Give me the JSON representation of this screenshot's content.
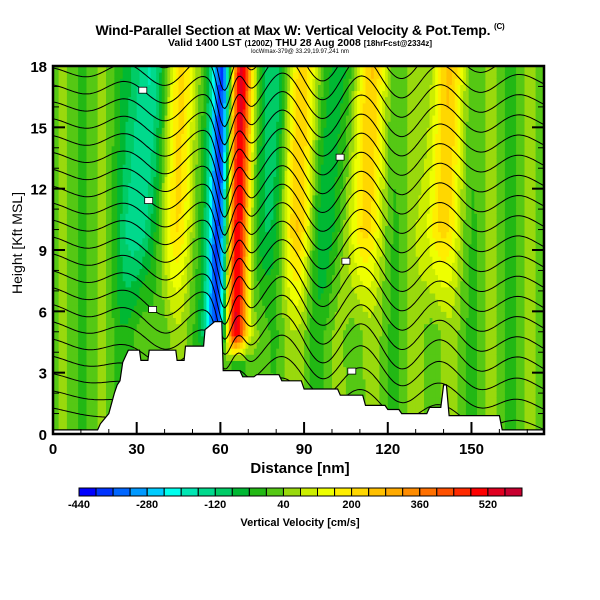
{
  "chart_data": {
    "type": "heatmap",
    "title": "Wind-Parallel Section at Max W: Vertical Velocity & Pot.Temp.",
    "title_suffix": "(C)",
    "subtitle_main": "Valid 1400 LST",
    "subtitle_zulu": "(1200Z)",
    "subtitle_date": "THU 28 Aug 2008",
    "subtitle_fcst": "[18hrFcst@2334z]",
    "subtitle_location": "locWmax-379@ 33.29,19.97,241 nm",
    "xlabel": "Distance [nm]",
    "ylabel": "Height [Kft MSL]",
    "xlim": [
      0,
      176
    ],
    "ylim": [
      0,
      18
    ],
    "xticks": [
      "0",
      "30",
      "60",
      "90",
      "120",
      "150"
    ],
    "xtick_values": [
      0,
      30,
      60,
      90,
      120,
      150
    ],
    "yticks": [
      "0",
      "3",
      "6",
      "9",
      "12",
      "15",
      "18"
    ],
    "ytick_values": [
      0,
      3,
      6,
      9,
      12,
      15,
      18
    ],
    "colorbar": {
      "label": "Vertical Velocity [cm/s]",
      "min": -440,
      "max": 600,
      "step": 40,
      "tick_labels": [
        "-440",
        "-280",
        "-120",
        "40",
        "200",
        "360",
        "520"
      ],
      "tick_values": [
        -440,
        -280,
        -120,
        40,
        200,
        360,
        520
      ],
      "colors": [
        "#0000ff",
        "#0033ff",
        "#0066ff",
        "#0099ff",
        "#00ccff",
        "#00ffee",
        "#00e6b3",
        "#00d98c",
        "#00cc66",
        "#00b833",
        "#22b814",
        "#55c814",
        "#99d90d",
        "#ccee00",
        "#eeff00",
        "#ffee00",
        "#ffd700",
        "#ffc000",
        "#ffaa00",
        "#ff8c00",
        "#ff7000",
        "#ff5000",
        "#ff2a00",
        "#ff0000",
        "#e00020",
        "#c80030"
      ]
    },
    "terrain_profile": {
      "distance_nm": [
        0,
        16,
        17,
        20,
        21,
        22,
        23,
        24,
        25,
        27,
        31,
        31.5,
        34,
        34.5,
        44,
        44.5,
        47,
        47.5,
        54,
        54.5,
        58,
        60.5,
        61,
        61.5,
        67,
        68,
        72,
        73,
        81,
        82,
        89,
        90,
        102,
        103,
        111,
        112,
        119,
        120,
        124,
        125,
        134,
        135,
        139,
        140,
        141,
        142,
        160,
        161,
        176
      ],
      "height_kft": [
        0.2,
        0.2,
        0.5,
        1.0,
        1.5,
        2.0,
        2.4,
        2.6,
        3.5,
        4.1,
        4.1,
        3.6,
        3.6,
        4.1,
        4.1,
        3.6,
        3.6,
        4.3,
        4.3,
        5.1,
        5.5,
        5.5,
        3.1,
        3.1,
        3.1,
        2.8,
        2.8,
        2.9,
        2.9,
        2.6,
        2.6,
        2.2,
        2.2,
        1.9,
        1.9,
        1.4,
        1.4,
        1.2,
        1.2,
        1.0,
        1.0,
        1.3,
        1.3,
        2.4,
        2.4,
        0.9,
        0.9,
        0.2,
        0.2
      ]
    },
    "velocity_features": [
      {
        "name": "strong downdraft",
        "distance_nm": 59,
        "min_cm_s": -440,
        "height_range_kft": [
          5,
          18
        ]
      },
      {
        "name": "strong updraft",
        "distance_nm": 66,
        "max_cm_s": 560,
        "height_range_kft": [
          5,
          18
        ]
      },
      {
        "name": "weak updraft band",
        "distance_nm": 43,
        "max_cm_s": 160
      },
      {
        "name": "weak updraft band",
        "distance_nm": 87,
        "max_cm_s": 200
      },
      {
        "name": "weak updraft band",
        "distance_nm": 110,
        "max_cm_s": 200
      },
      {
        "name": "weak updraft band",
        "distance_nm": 138,
        "max_cm_s": 200
      },
      {
        "name": "weak downdraft band",
        "distance_nm": 30,
        "min_cm_s": -200
      },
      {
        "name": "weak downdraft band",
        "distance_nm": 75,
        "min_cm_s": -120
      },
      {
        "name": "weak downdraft band",
        "distance_nm": 98,
        "min_cm_s": -120
      }
    ],
    "contours": {
      "variable": "Potential Temperature",
      "count": 22,
      "line_color": "#000000"
    }
  }
}
